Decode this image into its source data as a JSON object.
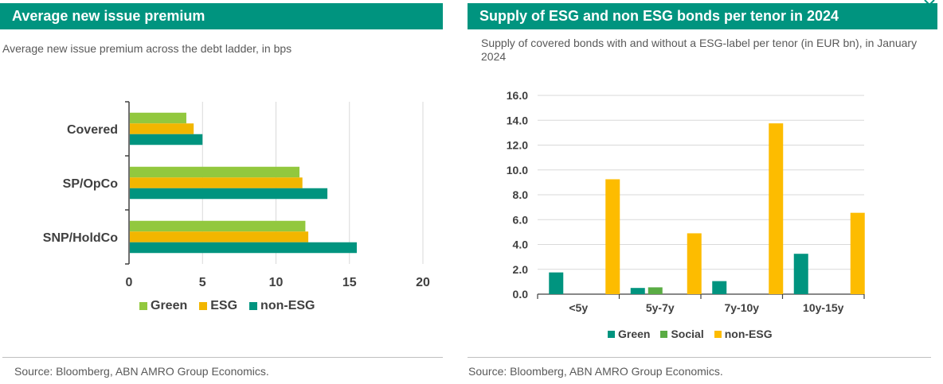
{
  "colors": {
    "header": "#00947f",
    "green": "#92c83e",
    "esg": "#f2b600",
    "non_esg": "#00947f",
    "green_right": "#00947f",
    "social": "#5aac44",
    "non_esg_right": "#fdbc00"
  },
  "left": {
    "title": "Average new issue premium",
    "subtitle": "Average new issue premium across the debt ladder, in bps",
    "source": "Source: Bloomberg, ABN AMRO Group Economics.",
    "legend": [
      "Green",
      "ESG",
      "non-ESG"
    ]
  },
  "right": {
    "title": "Supply of ESG and non ESG bonds per tenor in 2024",
    "subtitle": "Supply of covered bonds with and without a ESG-label per tenor (in EUR bn), in January 2024",
    "source": "Source: Bloomberg, ABN AMRO Group Economics.",
    "legend": [
      "Green",
      "Social",
      "non-ESG"
    ]
  },
  "chart_data": [
    {
      "type": "bar",
      "orientation": "horizontal",
      "title": "Average new issue premium",
      "subtitle": "Average new issue premium across the debt ladder, in bps",
      "categories": [
        "Covered",
        "SP/OpCo",
        "SNP/HoldCo"
      ],
      "series": [
        {
          "name": "Green",
          "values": [
            3.9,
            11.6,
            12.0
          ]
        },
        {
          "name": "ESG",
          "values": [
            4.4,
            11.8,
            12.2
          ]
        },
        {
          "name": "non-ESG",
          "values": [
            5.0,
            13.5,
            15.5
          ]
        }
      ],
      "xlim": [
        0,
        20
      ],
      "xticks": [
        "0",
        "5",
        "10",
        "15",
        "20"
      ],
      "grid": true,
      "legend_position": "bottom"
    },
    {
      "type": "bar",
      "orientation": "vertical",
      "title": "Supply of ESG and non ESG bonds per tenor in 2024",
      "subtitle": "Supply of covered bonds with and without a ESG-label per tenor (in EUR bn), in January 2024",
      "categories": [
        "<5y",
        "5y-7y",
        "7y-10y",
        "10y-15y"
      ],
      "series": [
        {
          "name": "Green",
          "values": [
            1.75,
            0.5,
            1.05,
            3.25
          ]
        },
        {
          "name": "Social",
          "values": [
            0,
            0.55,
            0,
            0
          ]
        },
        {
          "name": "non-ESG",
          "values": [
            9.25,
            4.9,
            13.75,
            6.55
          ]
        }
      ],
      "ylim": [
        0,
        16
      ],
      "yticks": [
        "0.0",
        "2.0",
        "4.0",
        "6.0",
        "8.0",
        "10.0",
        "12.0",
        "14.0",
        "16.0"
      ],
      "grid": true,
      "legend_position": "bottom"
    }
  ]
}
